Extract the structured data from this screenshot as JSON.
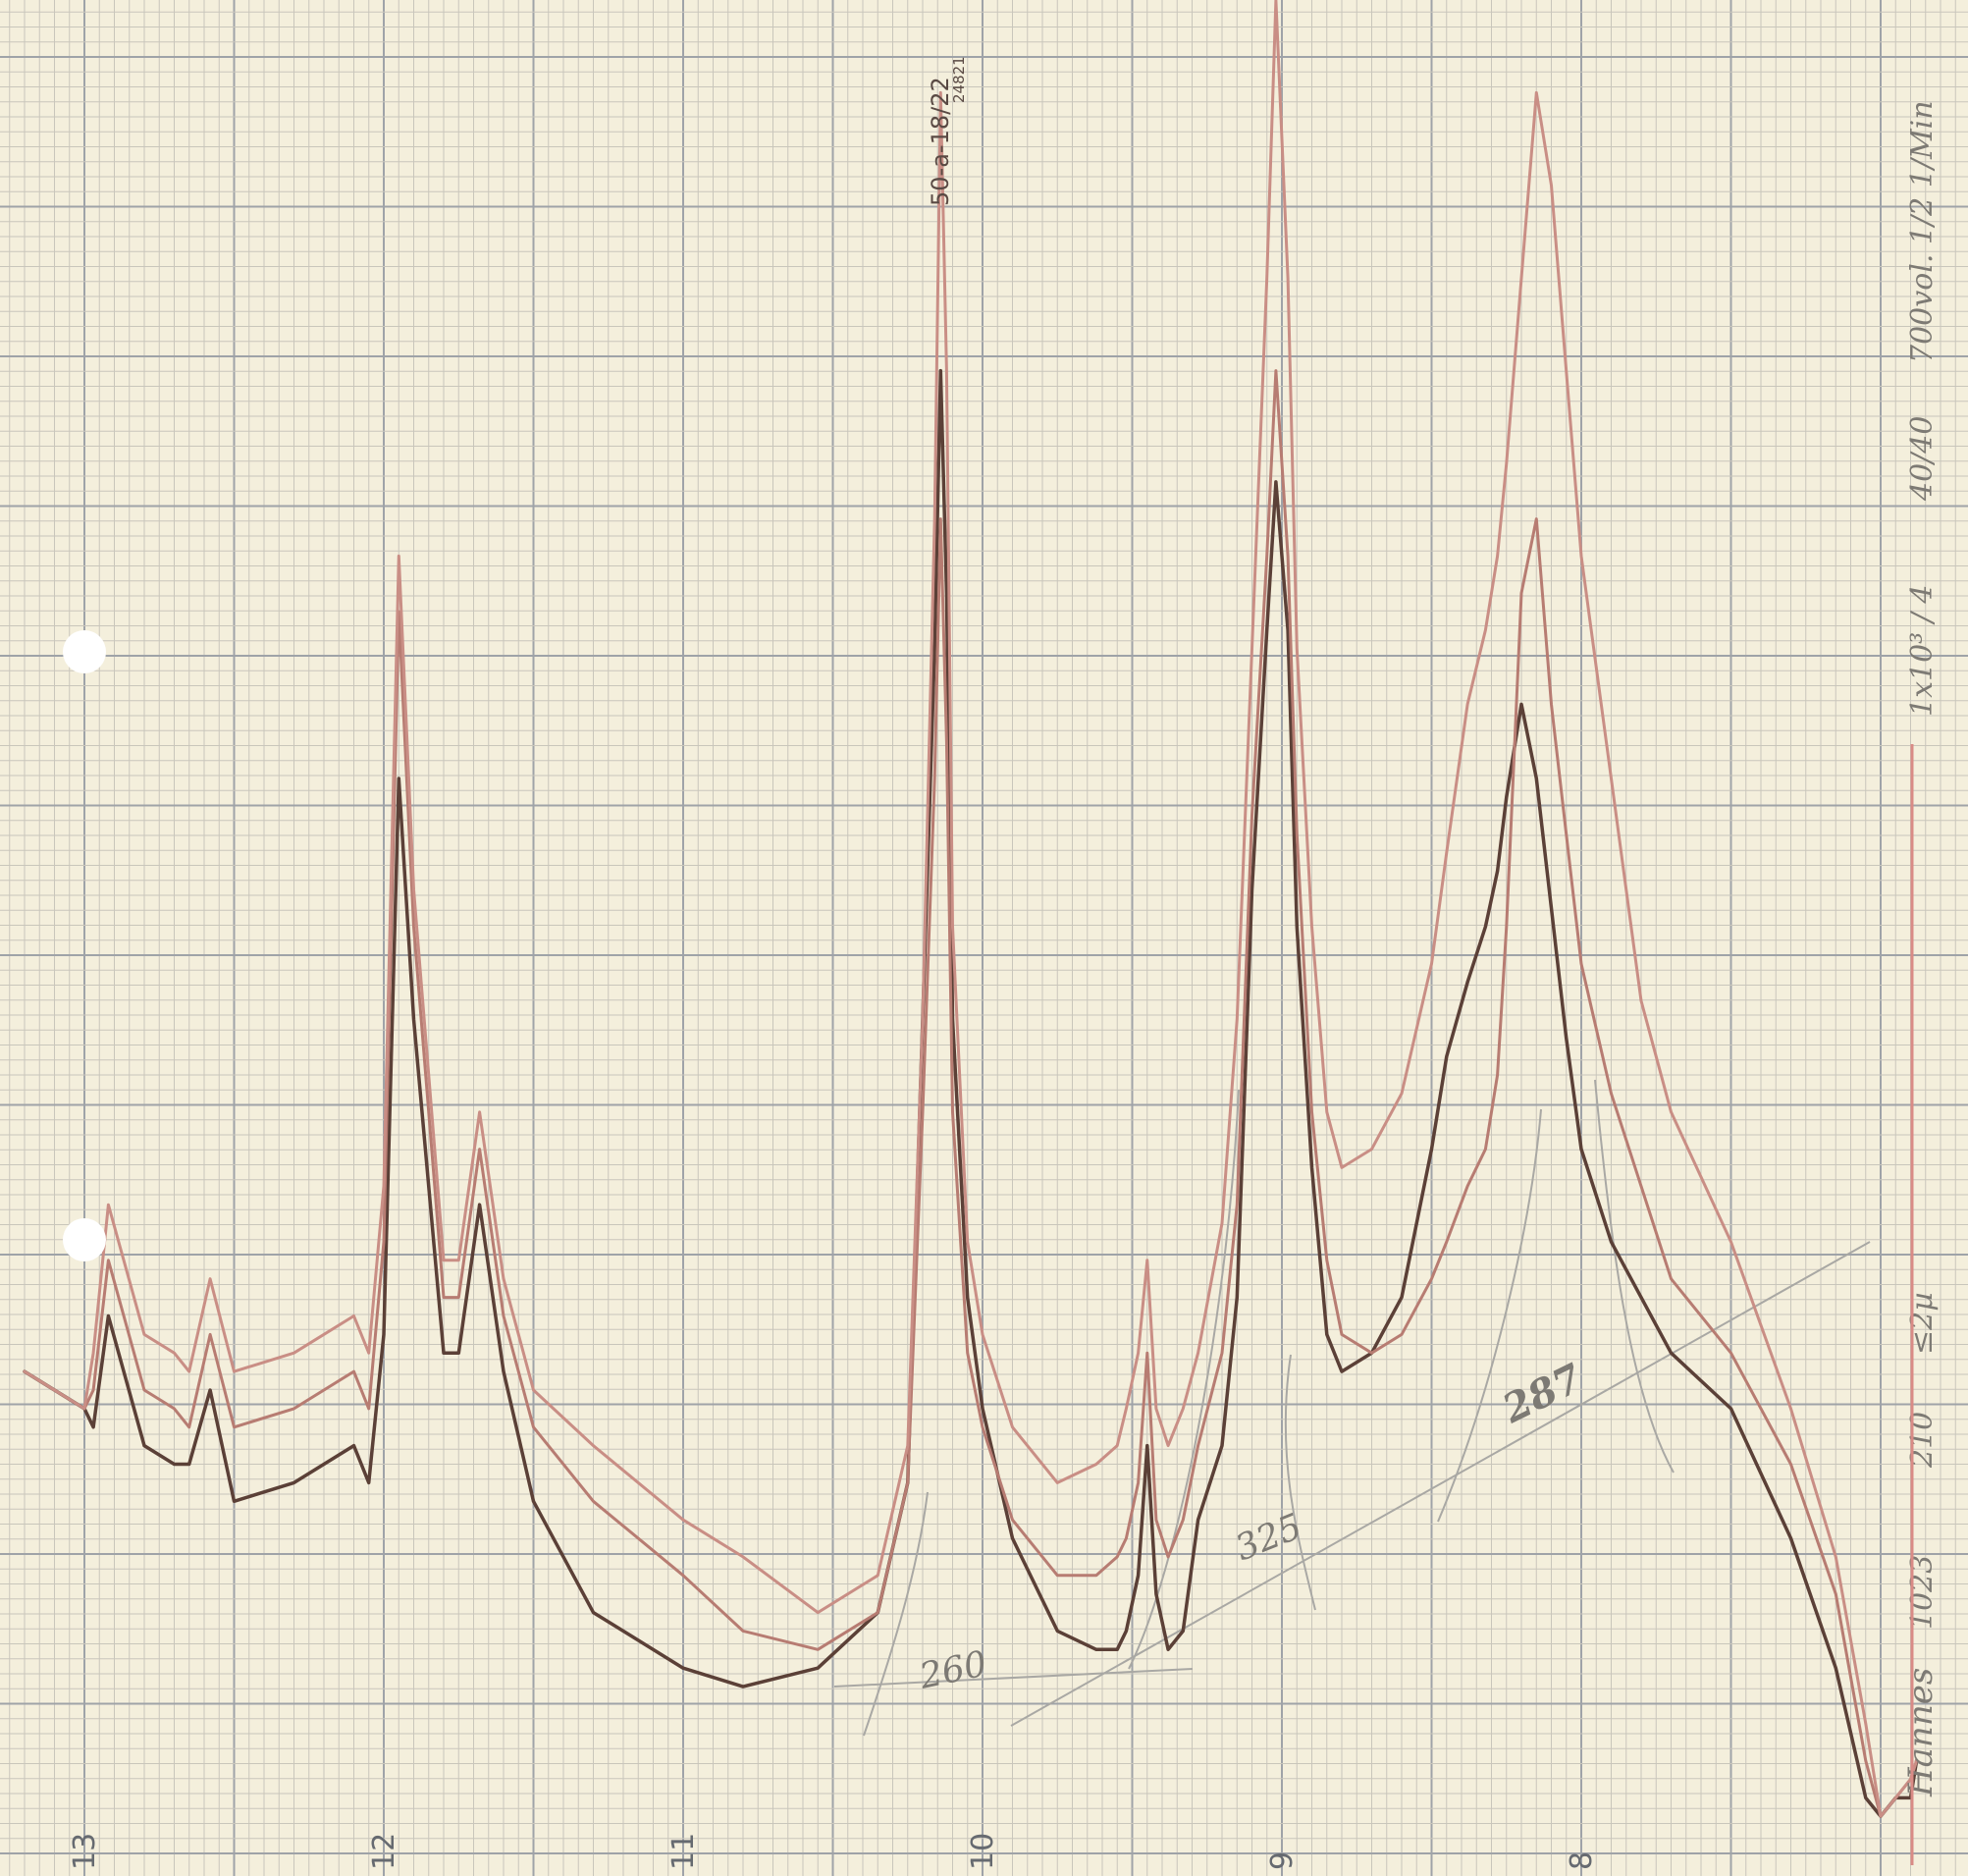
{
  "chart_data": {
    "type": "line",
    "title": "",
    "xlabel": "",
    "ylabel": "",
    "x_reversed": true,
    "xlim": [
      13.2,
      6.6
    ],
    "ylim": [
      0,
      100
    ],
    "grid": true,
    "x_ticks": [
      {
        "x": 13,
        "label": "13"
      },
      {
        "x": 12,
        "label": "12"
      },
      {
        "x": 11,
        "label": "11"
      },
      {
        "x": 10,
        "label": "10"
      },
      {
        "x": 9,
        "label": "9"
      },
      {
        "x": 8,
        "label": "8"
      }
    ],
    "series": [
      {
        "color": "#5b4037",
        "x": [
          13.2,
          13.0,
          12.97,
          12.92,
          12.8,
          12.7,
          12.65,
          12.58,
          12.5,
          12.3,
          12.1,
          12.05,
          12.0,
          11.95,
          11.9,
          11.8,
          11.75,
          11.68,
          11.6,
          11.5,
          11.3,
          11.0,
          10.8,
          10.55,
          10.35,
          10.25,
          10.2,
          10.16,
          10.14,
          10.12,
          10.1,
          10.05,
          10.0,
          9.9,
          9.75,
          9.62,
          9.55,
          9.52,
          9.48,
          9.45,
          9.42,
          9.38,
          9.33,
          9.28,
          9.2,
          9.15,
          9.1,
          9.05,
          9.02,
          8.98,
          8.95,
          8.9,
          8.85,
          8.8,
          8.7,
          8.6,
          8.5,
          8.45,
          8.38,
          8.32,
          8.28,
          8.25,
          8.2,
          8.15,
          8.1,
          8.05,
          8.0,
          7.9,
          7.8,
          7.7,
          7.5,
          7.3,
          7.15,
          7.05,
          7.0,
          6.95,
          6.9,
          6.88
        ],
        "values": [
          26,
          24,
          23,
          29,
          22,
          21,
          21,
          25,
          19,
          20,
          22,
          20,
          28,
          58,
          45,
          27,
          27,
          35,
          26,
          19,
          13,
          10,
          9,
          10,
          13,
          20,
          45,
          65,
          80,
          68,
          45,
          30,
          24,
          17,
          12,
          11,
          11,
          12,
          15,
          22,
          14,
          11,
          12,
          18,
          22,
          30,
          52,
          66,
          74,
          66,
          50,
          37,
          28,
          26,
          27,
          30,
          38,
          43,
          47,
          50,
          53,
          57,
          62,
          58,
          51,
          44,
          38,
          33,
          30,
          27,
          24,
          17,
          10,
          3,
          2,
          3,
          3,
          5
        ]
      },
      {
        "color": "#b77c72",
        "x": [
          13.2,
          13.0,
          12.97,
          12.92,
          12.8,
          12.7,
          12.65,
          12.58,
          12.5,
          12.3,
          12.1,
          12.05,
          12.0,
          11.95,
          11.9,
          11.8,
          11.75,
          11.68,
          11.6,
          11.5,
          11.3,
          11.0,
          10.8,
          10.55,
          10.35,
          10.25,
          10.2,
          10.16,
          10.14,
          10.12,
          10.1,
          10.05,
          10.0,
          9.9,
          9.75,
          9.62,
          9.55,
          9.52,
          9.48,
          9.45,
          9.42,
          9.38,
          9.33,
          9.28,
          9.2,
          9.15,
          9.1,
          9.05,
          9.02,
          8.98,
          8.95,
          8.9,
          8.85,
          8.8,
          8.7,
          8.6,
          8.5,
          8.45,
          8.38,
          8.32,
          8.28,
          8.25,
          8.2,
          8.15,
          8.1,
          8.05,
          8.0,
          7.9,
          7.8,
          7.7,
          7.5,
          7.3,
          7.15,
          7.05,
          7.0,
          6.95,
          6.9,
          6.88
        ],
        "values": [
          26,
          24,
          25,
          32,
          25,
          24,
          23,
          28,
          23,
          24,
          26,
          24,
          33,
          67,
          50,
          30,
          30,
          38,
          29,
          23,
          19,
          15,
          12,
          11,
          13,
          20,
          40,
          58,
          72,
          60,
          40,
          27,
          23,
          18,
          15,
          15,
          16,
          17,
          20,
          27,
          18,
          16,
          18,
          22,
          27,
          35,
          56,
          70,
          80,
          70,
          55,
          40,
          32,
          28,
          27,
          28,
          31,
          33,
          36,
          38,
          42,
          50,
          68,
          72,
          62,
          55,
          48,
          41,
          36,
          31,
          27,
          21,
          14,
          5,
          2,
          3,
          4,
          5
        ]
      },
      {
        "color": "#c98e85",
        "x": [
          13.2,
          13.0,
          12.97,
          12.92,
          12.8,
          12.7,
          12.65,
          12.58,
          12.5,
          12.3,
          12.1,
          12.05,
          12.0,
          11.95,
          11.9,
          11.8,
          11.75,
          11.68,
          11.6,
          11.5,
          11.3,
          11.0,
          10.8,
          10.55,
          10.35,
          10.25,
          10.2,
          10.16,
          10.14,
          10.12,
          10.1,
          10.05,
          10.0,
          9.9,
          9.75,
          9.62,
          9.55,
          9.52,
          9.48,
          9.45,
          9.42,
          9.38,
          9.33,
          9.28,
          9.2,
          9.15,
          9.1,
          9.05,
          9.02,
          8.98,
          8.95,
          8.9,
          8.85,
          8.8,
          8.7,
          8.6,
          8.5,
          8.45,
          8.38,
          8.32,
          8.28,
          8.25,
          8.2,
          8.15,
          8.1,
          8.05,
          8.0,
          7.9,
          7.8,
          7.7,
          7.5,
          7.3,
          7.15,
          7.05,
          7.0,
          6.95,
          6.9,
          6.88
        ],
        "values": [
          26,
          24,
          27,
          35,
          28,
          27,
          26,
          31,
          26,
          27,
          29,
          27,
          36,
          70,
          52,
          32,
          32,
          40,
          31,
          25,
          22,
          18,
          16,
          13,
          15,
          22,
          45,
          72,
          95,
          80,
          50,
          33,
          28,
          23,
          20,
          21,
          22,
          24,
          27,
          32,
          24,
          22,
          24,
          27,
          34,
          45,
          65,
          85,
          100,
          85,
          65,
          50,
          40,
          37,
          38,
          41,
          48,
          54,
          62,
          66,
          70,
          75,
          85,
          95,
          90,
          80,
          70,
          58,
          46,
          40,
          33,
          24,
          16,
          7,
          2,
          3,
          4,
          5
        ]
      }
    ],
    "annotations": {
      "sample_id": "50-a-18/22",
      "sample_number": "24821",
      "baseline_numbers": [
        "260",
        "325",
        "287"
      ],
      "side_notes": [
        "1x10³ / 4",
        "40/40",
        "700vol. 1/2 1/Min",
        "210",
        "≤2µ",
        "1023"
      ],
      "signature": "Hannes"
    }
  }
}
